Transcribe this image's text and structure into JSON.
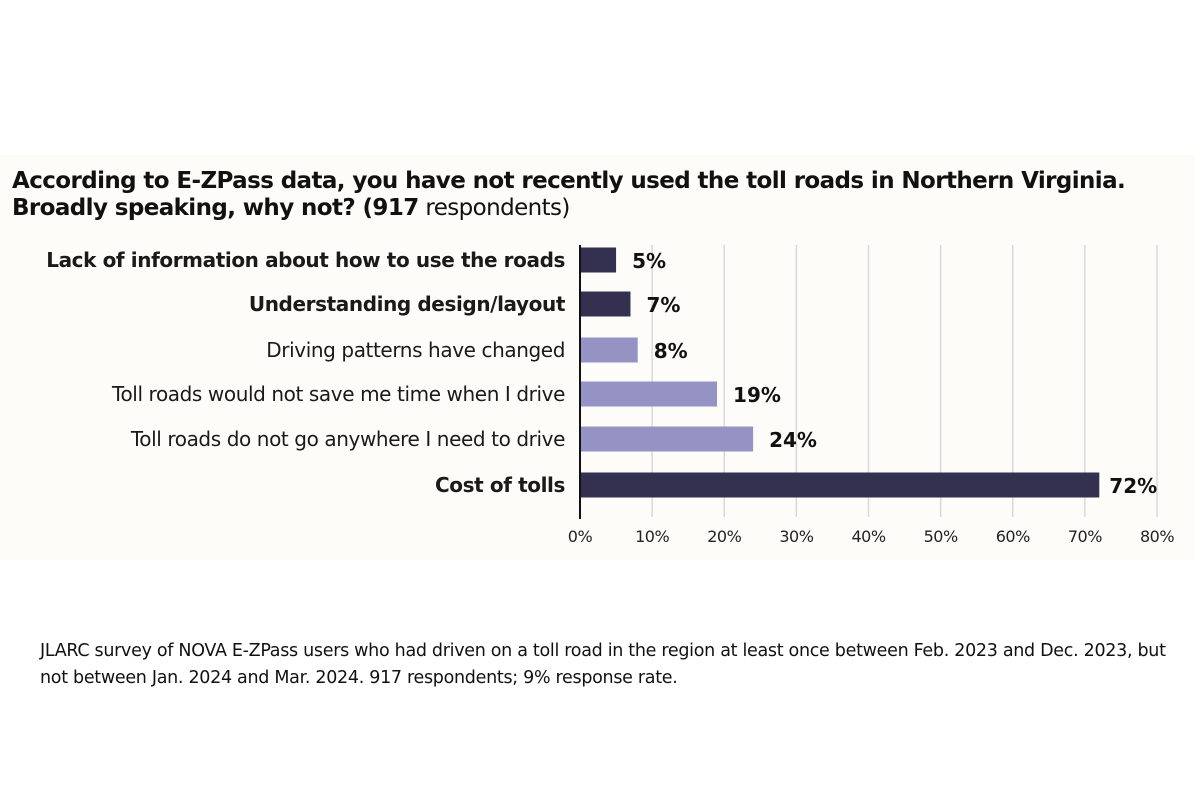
{
  "chart_data": {
    "type": "bar",
    "orientation": "horizontal",
    "title_bold": "According to E-ZPass data, you have not recently used the toll roads in Northern Virginia. Broadly speaking, why not? (917",
    "title_regular": " respondents)",
    "categories": [
      "Lack of information about how to use the roads",
      "Understanding design/layout",
      "Driving patterns have changed",
      "Toll roads would not save me time when I drive",
      "Toll roads do not go anywhere I need to drive",
      "Cost of tolls"
    ],
    "category_bold": [
      true,
      true,
      false,
      false,
      false,
      true
    ],
    "values": [
      5,
      7,
      8,
      19,
      24,
      72
    ],
    "data_labels": [
      "5%",
      "7%",
      "8%",
      "19%",
      "24%",
      "72%"
    ],
    "bar_colors": [
      "#34304f",
      "#34304f",
      "#9593c4",
      "#9593c4",
      "#9593c4",
      "#34304f"
    ],
    "xlim": [
      0,
      80
    ],
    "xticks": [
      "0%",
      "10%",
      "20%",
      "30%",
      "40%",
      "50%",
      "60%",
      "70%",
      "80%"
    ],
    "grid": "vertical",
    "xlabel": "",
    "ylabel": ""
  },
  "note": "JLARC survey of NOVA E-ZPass users who had driven on a toll road in the region at least once between Feb. 2023 and Dec. 2023, but not between Jan. 2024 and Mar. 2024. 917 respondents; 9% response rate."
}
